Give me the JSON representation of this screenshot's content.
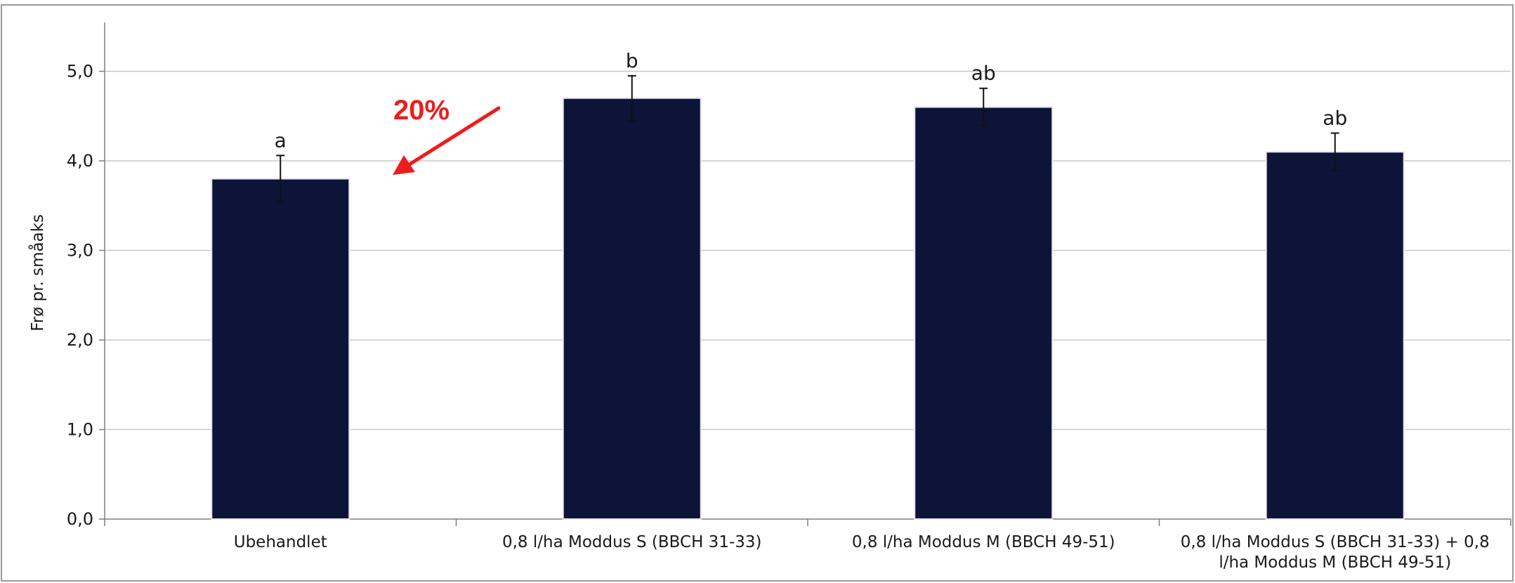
{
  "chart_data": {
    "type": "bar",
    "title": "",
    "xlabel": "",
    "ylabel": "Frø pr. småaks",
    "ylim": [
      0,
      5.5
    ],
    "yticks": [
      "0,0",
      "1,0",
      "2,0",
      "3,0",
      "4,0",
      "5,0"
    ],
    "grid": true,
    "categories": [
      [
        "Ubehandlet"
      ],
      [
        "0,8 l/ha Moddus S (BBCH 31-33)"
      ],
      [
        "0,8 l/ha Moddus M (BBCH 49-51)"
      ],
      [
        "0,8 l/ha Moddus S (BBCH 31-33) + 0,8",
        "l/ha Moddus M (BBCH 49-51)"
      ]
    ],
    "values": [
      3.8,
      4.7,
      4.6,
      4.1
    ],
    "error": [
      0.26,
      0.25,
      0.21,
      0.21
    ],
    "significance": [
      "a",
      "b",
      "ab",
      "ab"
    ],
    "bar_color": "#0c1538",
    "annotation": {
      "text": "20%",
      "color": "#ee1c1c"
    }
  }
}
